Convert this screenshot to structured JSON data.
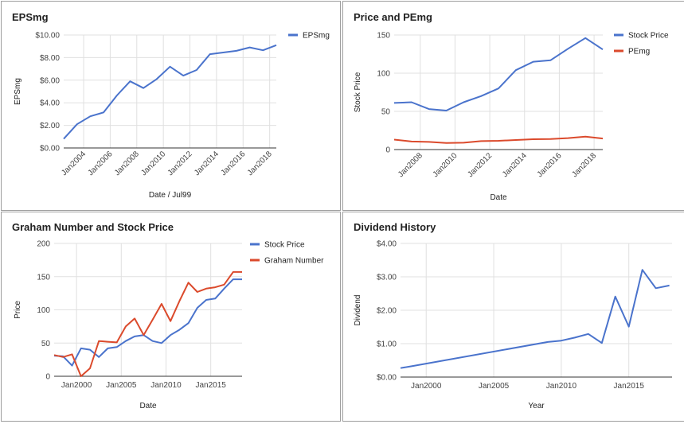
{
  "chart_data": [
    {
      "type": "line",
      "title": "EPSmg",
      "xlabel": "Date / Jul99",
      "ylabel": "EPSmg",
      "x_ticks": [
        "Jan2004",
        "Jan2006",
        "Jan2008",
        "Jan2010",
        "Jan2012",
        "Jan2014",
        "Jan2016",
        "Jan2018"
      ],
      "y_ticks": [
        "$0.00",
        "$2.00",
        "$4.00",
        "$6.00",
        "$8.00",
        "$10.00"
      ],
      "xlim": [
        2002.5,
        2018.5
      ],
      "ylim": [
        0,
        10
      ],
      "x_scale": "year",
      "grid": true,
      "legend": "right",
      "series": [
        {
          "name": "EPSmg",
          "color": "#4a73cc",
          "x": [
            2002.5,
            2003.5,
            2004.5,
            2005.5,
            2006.5,
            2007.5,
            2008.5,
            2009.5,
            2010.5,
            2011.5,
            2012.5,
            2013.5,
            2014.5,
            2015.5,
            2016.5,
            2017.5,
            2018.5
          ],
          "y": [
            0.8,
            2.1,
            2.8,
            3.15,
            4.65,
            5.9,
            5.3,
            6.1,
            7.2,
            6.4,
            6.9,
            8.3,
            8.45,
            8.6,
            8.9,
            8.65,
            9.1
          ]
        }
      ]
    },
    {
      "type": "line",
      "title": "Price and PEmg",
      "xlabel": "Date",
      "ylabel": "Stock Price",
      "x_ticks": [
        "Jan2008",
        "Jan2010",
        "Jan2012",
        "Jan2014",
        "Jan2016",
        "Jan2018"
      ],
      "y_ticks": [
        "0",
        "50",
        "100",
        "150"
      ],
      "xlim": [
        2006.5,
        2018.5
      ],
      "ylim": [
        0,
        150
      ],
      "x_scale": "year",
      "grid": true,
      "legend": "right",
      "series": [
        {
          "name": "Stock Price",
          "color": "#4a73cc",
          "x": [
            2006.5,
            2007.5,
            2008.5,
            2009.5,
            2010.5,
            2011.5,
            2012.5,
            2013.5,
            2014.5,
            2015.5,
            2016.5,
            2017.5,
            2018.5
          ],
          "y": [
            61,
            62,
            53,
            51,
            62,
            70,
            80,
            104,
            115,
            117,
            132,
            146,
            131
          ]
        },
        {
          "name": "PEmg",
          "color": "#db4a2c",
          "x": [
            2006.5,
            2007.5,
            2008.5,
            2009.5,
            2010.5,
            2011.5,
            2012.5,
            2013.5,
            2014.5,
            2015.5,
            2016.5,
            2017.5,
            2018.5
          ],
          "y": [
            13,
            10.5,
            10,
            8.5,
            9,
            11,
            11.5,
            12.5,
            13.5,
            13.8,
            15,
            17,
            14.5
          ]
        }
      ]
    },
    {
      "type": "line",
      "title": "Graham Number and Stock Price",
      "xlabel": "Date",
      "ylabel": "Price",
      "x_ticks": [
        "Jan2000",
        "Jan2005",
        "Jan2010",
        "Jan2015"
      ],
      "y_ticks": [
        "0",
        "50",
        "100",
        "150",
        "200"
      ],
      "xlim": [
        1997.5,
        2018.5
      ],
      "ylim": [
        0,
        200
      ],
      "x_scale": "year",
      "grid": true,
      "legend": "right",
      "series": [
        {
          "name": "Stock Price",
          "color": "#4a73cc",
          "x": [
            1997.5,
            1998.5,
            1999.5,
            2000.5,
            2001.5,
            2002.5,
            2003.5,
            2004.5,
            2005.5,
            2006.5,
            2007.5,
            2008.5,
            2009.5,
            2010.5,
            2011.5,
            2012.5,
            2013.5,
            2014.5,
            2015.5,
            2016.5,
            2017.5,
            2018.5
          ],
          "y": [
            31,
            30,
            16,
            42,
            40,
            29,
            42,
            44,
            53,
            60,
            62,
            53,
            50,
            62,
            70,
            80,
            103,
            115,
            117,
            132,
            146,
            146
          ]
        },
        {
          "name": "Graham Number",
          "color": "#db4a2c",
          "x": [
            1997.5,
            1998.5,
            1999.5,
            2000.5,
            2001.5,
            2002.5,
            2003.5,
            2004.5,
            2005.5,
            2006.5,
            2007.5,
            2008.5,
            2009.5,
            2010.5,
            2011.5,
            2012.5,
            2013.5,
            2014.5,
            2015.5,
            2016.5,
            2017.5,
            2018.5
          ],
          "y": [
            32,
            29,
            33,
            0,
            12,
            53,
            52,
            51,
            75,
            87,
            62,
            85,
            109,
            83,
            113,
            141,
            127,
            132,
            134,
            138,
            157,
            157
          ]
        }
      ]
    },
    {
      "type": "line",
      "title": "Dividend History",
      "xlabel": "Year",
      "ylabel": "Dividend",
      "x_ticks": [
        "Jan2000",
        "Jan2005",
        "Jan2010",
        "Jan2015"
      ],
      "y_ticks": [
        "$0.00",
        "$1.00",
        "$2.00",
        "$3.00",
        "$4.00"
      ],
      "xlim": [
        1998.1,
        2018.2
      ],
      "ylim": [
        0,
        4
      ],
      "x_scale": "year",
      "grid": true,
      "legend": "none",
      "series": [
        {
          "name": "Dividend",
          "color": "#4a73cc",
          "x": [
            1998.1,
            1999.0,
            2009.0,
            2010.0,
            2011.0,
            2012.0,
            2013.0,
            2014.0,
            2015.0,
            2016.0,
            2017.0,
            2018.0
          ],
          "y": [
            0.27,
            0.33,
            1.05,
            1.09,
            1.18,
            1.29,
            1.02,
            2.41,
            1.51,
            3.21,
            2.66,
            2.74
          ]
        }
      ]
    }
  ]
}
